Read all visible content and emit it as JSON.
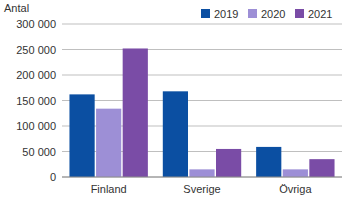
{
  "chart_data": {
    "type": "bar",
    "y_label": "Antal",
    "categories": [
      "Finland",
      "Sverige",
      "Övriga"
    ],
    "series": [
      {
        "name": "2019",
        "color": "#0b4fa2",
        "values": [
          162000,
          168000,
          59000
        ]
      },
      {
        "name": "2020",
        "color": "#9d8fd6",
        "values": [
          134000,
          15000,
          15000
        ]
      },
      {
        "name": "2021",
        "color": "#7a4ca6",
        "values": [
          252000,
          55000,
          35000
        ]
      }
    ],
    "ylim": [
      0,
      300000
    ],
    "yticks": [
      0,
      {
        "value": 50000,
        "label": "50 000"
      },
      {
        "value": 100000,
        "label": "100 000"
      },
      {
        "value": 150000,
        "label": "150 000"
      },
      {
        "value": 200000,
        "label": "200 000"
      },
      {
        "value": 250000,
        "label": "250 000"
      },
      {
        "value": 300000,
        "label": "300 000"
      }
    ],
    "grid": true,
    "legend": "top-right"
  }
}
